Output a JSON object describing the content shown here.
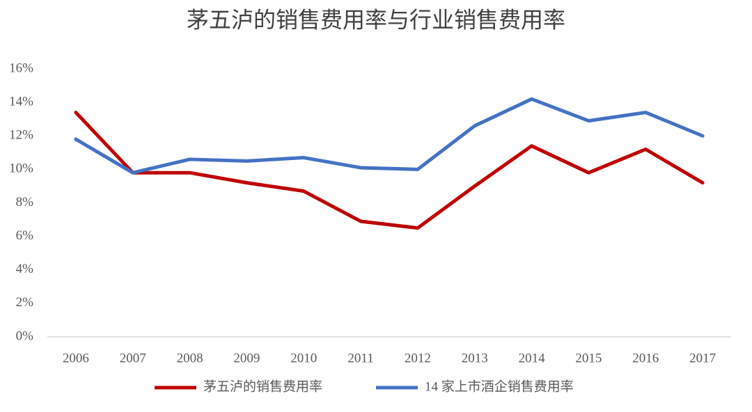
{
  "chart_data": {
    "type": "line",
    "title": "茅五泸的销售费用率与行业销售费用率",
    "categories": [
      "2006",
      "2007",
      "2008",
      "2009",
      "2010",
      "2011",
      "2012",
      "2013",
      "2014",
      "2015",
      "2016",
      "2017"
    ],
    "series": [
      {
        "name": "茅五泸的销售费用率",
        "color": "#c00000",
        "values": [
          13.4,
          9.8,
          9.8,
          9.2,
          8.7,
          6.9,
          6.5,
          9.0,
          11.4,
          9.8,
          11.2,
          9.2
        ]
      },
      {
        "name": "14 家上市酒企销售费用率",
        "color": "#4472c4",
        "values": [
          11.8,
          9.8,
          10.6,
          10.5,
          10.7,
          10.1,
          10.0,
          12.6,
          14.2,
          12.9,
          13.4,
          12.0
        ]
      }
    ],
    "ylim": [
      0,
      16
    ],
    "yticks": [
      {
        "value": 0,
        "label": "0%"
      },
      {
        "value": 2,
        "label": "2%"
      },
      {
        "value": 4,
        "label": "4%"
      },
      {
        "value": 6,
        "label": "6%"
      },
      {
        "value": 8,
        "label": "8%"
      },
      {
        "value": 10,
        "label": "10%"
      },
      {
        "value": 12,
        "label": "12%"
      },
      {
        "value": 14,
        "label": "14%"
      },
      {
        "value": 16,
        "label": "16%"
      }
    ],
    "grid": false,
    "legend": "bottom"
  }
}
